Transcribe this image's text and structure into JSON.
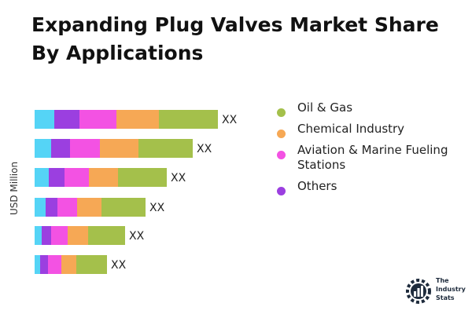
{
  "title": "Expanding Plug Valves Market Share By Applications",
  "brand": {
    "line1": "The",
    "line2": "Industry",
    "line3": "Stats"
  },
  "chart_data": {
    "type": "bar",
    "orientation": "horizontal",
    "stacked": true,
    "title": "Expanding Plug Valves Market Share By Applications",
    "ylabel": "USD Million",
    "xlabel": "",
    "grid": false,
    "legend_position": "right",
    "categories": [
      "",
      "",
      "",
      "",
      "",
      ""
    ],
    "data_labels": [
      "XX",
      "XX",
      "XX",
      "XX",
      "XX",
      "XX"
    ],
    "series": [
      {
        "name": "Oil & Gas",
        "color": "#a4c04b",
        "values": [
          75,
          69,
          62,
          56,
          47,
          39
        ]
      },
      {
        "name": "Chemical Industry",
        "color": "#f6a855",
        "values": [
          54,
          49,
          37,
          31,
          26,
          19
        ]
      },
      {
        "name": "Aviation & Marine Fueling Stations",
        "color": "#f352e3",
        "values": [
          47,
          38,
          31,
          25,
          21,
          17
        ]
      },
      {
        "name": "Others",
        "color": "#9b3fe0",
        "values": [
          32,
          24,
          20,
          15,
          12,
          10
        ]
      },
      {
        "name": "",
        "color": "#55d4f6",
        "values": [
          25,
          21,
          18,
          14,
          9,
          7
        ]
      }
    ]
  }
}
